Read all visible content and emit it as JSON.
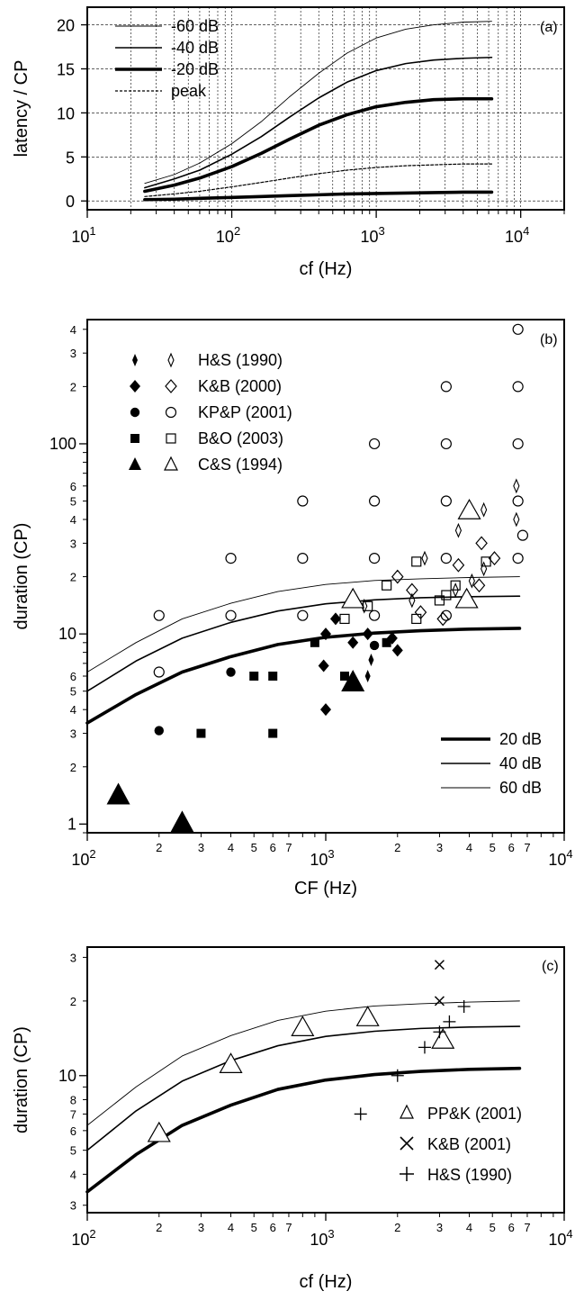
{
  "chart_data": [
    {
      "panel": "(a)",
      "type": "line",
      "xlabel": "cf (Hz)",
      "ylabel": "latency / CP",
      "xscale": "log",
      "xlim": [
        10,
        20000
      ],
      "ylim": [
        -1,
        22
      ],
      "grid": true,
      "xticks": [
        {
          "v": 10,
          "b": "10",
          "e": "1"
        },
        {
          "v": 100,
          "b": "10",
          "e": "2"
        },
        {
          "v": 1000,
          "b": "10",
          "e": "3"
        },
        {
          "v": 10000,
          "b": "10",
          "e": "4"
        }
      ],
      "yticks": [
        "0",
        "5",
        "10",
        "15",
        "20"
      ],
      "legend_position": "top-left",
      "legend": [
        {
          "label": "-60 dB",
          "style": "thin"
        },
        {
          "label": "-40 dB",
          "style": "medium"
        },
        {
          "label": "-20 dB",
          "style": "thick"
        },
        {
          "label": "peak",
          "style": "dotted"
        }
      ],
      "x": [
        25,
        40,
        60,
        100,
        160,
        250,
        400,
        630,
        1000,
        1600,
        2500,
        4000,
        6300
      ],
      "series": [
        {
          "name": "-60 dB",
          "values": [
            2.0,
            3.0,
            4.3,
            6.5,
            9.0,
            11.8,
            14.5,
            16.8,
            18.5,
            19.5,
            20.0,
            20.3,
            20.4
          ]
        },
        {
          "name": "-40 dB",
          "values": [
            1.5,
            2.5,
            3.5,
            5.3,
            7.3,
            9.5,
            11.7,
            13.5,
            14.8,
            15.6,
            16.0,
            16.2,
            16.3
          ]
        },
        {
          "name": "-20 dB",
          "values": [
            1.1,
            1.8,
            2.6,
            3.9,
            5.4,
            7.0,
            8.6,
            9.8,
            10.7,
            11.2,
            11.5,
            11.6,
            11.6
          ]
        },
        {
          "name": "peak",
          "values": [
            0.5,
            0.8,
            1.1,
            1.6,
            2.1,
            2.6,
            3.1,
            3.5,
            3.8,
            4.0,
            4.1,
            4.2,
            4.2
          ]
        },
        {
          "name": "peak-low",
          "values": [
            0.15,
            0.2,
            0.3,
            0.4,
            0.5,
            0.6,
            0.7,
            0.8,
            0.85,
            0.9,
            0.95,
            1.0,
            1.0
          ]
        }
      ],
      "tag": "(a)"
    },
    {
      "panel": "(b)",
      "type": "scatter",
      "xlabel": "CF (Hz)",
      "ylabel": "duration (CP)",
      "xscale": "log",
      "yscale": "log",
      "xlim": [
        100,
        10000
      ],
      "ylim": [
        0.9,
        450
      ],
      "xticks": [
        {
          "v": 100,
          "b": "10",
          "e": "2"
        },
        {
          "v": 1000,
          "b": "10",
          "e": "3"
        },
        {
          "v": 10000,
          "b": "10",
          "e": "4"
        }
      ],
      "xminor": [
        {
          "v": 200,
          "t": "2"
        },
        {
          "v": 300,
          "t": "3"
        },
        {
          "v": 400,
          "t": "4"
        },
        {
          "v": 500,
          "t": "5"
        },
        {
          "v": 600,
          "t": "6"
        },
        {
          "v": 700,
          "t": "7"
        },
        {
          "v": 2000,
          "t": "2"
        },
        {
          "v": 3000,
          "t": "3"
        },
        {
          "v": 4000,
          "t": "4"
        },
        {
          "v": 5000,
          "t": "5"
        },
        {
          "v": 6000,
          "t": "6"
        },
        {
          "v": 7000,
          "t": "7"
        }
      ],
      "yticks": [
        {
          "v": 1,
          "t": "1"
        },
        {
          "v": 10,
          "t": "10"
        },
        {
          "v": 100,
          "t": "100"
        }
      ],
      "yminor": [
        {
          "v": 2,
          "t": "2"
        },
        {
          "v": 3,
          "t": "3"
        },
        {
          "v": 4,
          "t": "4"
        },
        {
          "v": 5,
          "t": "5"
        },
        {
          "v": 6,
          "t": "6"
        },
        {
          "v": 20,
          "t": "2"
        },
        {
          "v": 30,
          "t": "3"
        },
        {
          "v": 40,
          "t": "4"
        },
        {
          "v": 50,
          "t": "5"
        },
        {
          "v": 60,
          "t": "6"
        },
        {
          "v": 200,
          "t": "2"
        },
        {
          "v": 300,
          "t": "3"
        },
        {
          "v": 400,
          "t": "4"
        }
      ],
      "legend_position": "top-left",
      "legend": [
        {
          "label": "H&S (1990)",
          "filled": "thin-diamond-filled",
          "open": "thin-diamond-open"
        },
        {
          "label": "K&B (2000)",
          "filled": "diamond-filled",
          "open": "diamond-open"
        },
        {
          "label": "KP&P (2001)",
          "filled": "circle-filled",
          "open": "circle-open"
        },
        {
          "label": "B&O (2003)",
          "filled": "square-filled",
          "open": "square-open"
        },
        {
          "label": "C&S (1994)",
          "filled": "triangle-filled",
          "open": "triangle-open"
        }
      ],
      "line_legend_position": "bottom-right",
      "line_legend": [
        {
          "label": "20 dB",
          "style": "thick"
        },
        {
          "label": "40 dB",
          "style": "medium"
        },
        {
          "label": "60 dB",
          "style": "thin"
        }
      ],
      "curve_x": [
        100,
        160,
        250,
        400,
        630,
        1000,
        1600,
        2500,
        4000,
        6500
      ],
      "series": [
        {
          "name": "20 dB",
          "values": [
            3.4,
            4.8,
            6.3,
            7.6,
            8.8,
            9.6,
            10.1,
            10.4,
            10.6,
            10.7
          ]
        },
        {
          "name": "40 dB",
          "values": [
            5.0,
            7.2,
            9.5,
            11.5,
            13.2,
            14.4,
            15.1,
            15.5,
            15.7,
            15.8
          ]
        },
        {
          "name": "60 dB",
          "values": [
            6.3,
            9.0,
            12.0,
            14.5,
            16.7,
            18.2,
            19.1,
            19.5,
            19.8,
            20.0
          ]
        }
      ],
      "points": [
        {
          "x": 1550,
          "y": 7.3,
          "m": "thin-diamond-filled"
        },
        {
          "x": 1500,
          "y": 6.0,
          "m": "thin-diamond-filled"
        },
        {
          "x": 1000,
          "y": 10.0,
          "m": "diamond-filled"
        },
        {
          "x": 1000,
          "y": 4.0,
          "m": "diamond-filled"
        },
        {
          "x": 980,
          "y": 6.8,
          "m": "diamond-filled"
        },
        {
          "x": 1300,
          "y": 9.0,
          "m": "diamond-filled"
        },
        {
          "x": 1500,
          "y": 10.0,
          "m": "diamond-filled"
        },
        {
          "x": 1900,
          "y": 9.5,
          "m": "diamond-filled"
        },
        {
          "x": 2000,
          "y": 8.2,
          "m": "diamond-filled"
        },
        {
          "x": 1100,
          "y": 12.0,
          "m": "diamond-filled"
        },
        {
          "x": 200,
          "y": 3.1,
          "m": "circle-filled"
        },
        {
          "x": 400,
          "y": 6.3,
          "m": "circle-filled"
        },
        {
          "x": 1600,
          "y": 8.7,
          "m": "circle-filled"
        },
        {
          "x": 300,
          "y": 3.0,
          "m": "square-filled"
        },
        {
          "x": 600,
          "y": 3.0,
          "m": "square-filled"
        },
        {
          "x": 500,
          "y": 6.0,
          "m": "square-filled"
        },
        {
          "x": 600,
          "y": 6.0,
          "m": "square-filled"
        },
        {
          "x": 900,
          "y": 9.0,
          "m": "square-filled"
        },
        {
          "x": 1200,
          "y": 6.0,
          "m": "square-filled"
        },
        {
          "x": 1800,
          "y": 9.0,
          "m": "square-filled"
        },
        {
          "x": 135,
          "y": 1.4,
          "m": "triangle-filled"
        },
        {
          "x": 250,
          "y": 1.0,
          "m": "triangle-filled"
        },
        {
          "x": 1300,
          "y": 5.5,
          "m": "triangle-filled"
        },
        {
          "x": 1450,
          "y": 14.0,
          "m": "thin-diamond-open"
        },
        {
          "x": 2300,
          "y": 15.0,
          "m": "thin-diamond-open"
        },
        {
          "x": 3500,
          "y": 17.0,
          "m": "thin-diamond-open"
        },
        {
          "x": 4100,
          "y": 19.0,
          "m": "thin-diamond-open"
        },
        {
          "x": 4600,
          "y": 22.0,
          "m": "thin-diamond-open"
        },
        {
          "x": 3600,
          "y": 35.0,
          "m": "thin-diamond-open"
        },
        {
          "x": 4600,
          "y": 45.0,
          "m": "thin-diamond-open"
        },
        {
          "x": 6300,
          "y": 60.0,
          "m": "thin-diamond-open"
        },
        {
          "x": 6300,
          "y": 40.0,
          "m": "thin-diamond-open"
        },
        {
          "x": 2600,
          "y": 25.0,
          "m": "thin-diamond-open"
        },
        {
          "x": 2000,
          "y": 20.0,
          "m": "diamond-open"
        },
        {
          "x": 2300,
          "y": 17.0,
          "m": "diamond-open"
        },
        {
          "x": 2500,
          "y": 13.0,
          "m": "diamond-open"
        },
        {
          "x": 3100,
          "y": 12.0,
          "m": "diamond-open"
        },
        {
          "x": 3600,
          "y": 23.0,
          "m": "diamond-open"
        },
        {
          "x": 4500,
          "y": 30.0,
          "m": "diamond-open"
        },
        {
          "x": 4400,
          "y": 18.0,
          "m": "diamond-open"
        },
        {
          "x": 5100,
          "y": 25.0,
          "m": "diamond-open"
        },
        {
          "x": 6700,
          "y": 33.0,
          "m": "circle-open"
        },
        {
          "x": 200,
          "y": 12.5,
          "m": "circle-open"
        },
        {
          "x": 200,
          "y": 6.3,
          "m": "circle-open"
        },
        {
          "x": 400,
          "y": 25.0,
          "m": "circle-open"
        },
        {
          "x": 400,
          "y": 12.5,
          "m": "circle-open"
        },
        {
          "x": 800,
          "y": 50.0,
          "m": "circle-open"
        },
        {
          "x": 800,
          "y": 25.0,
          "m": "circle-open"
        },
        {
          "x": 800,
          "y": 12.5,
          "m": "circle-open"
        },
        {
          "x": 1600,
          "y": 100.0,
          "m": "circle-open"
        },
        {
          "x": 1600,
          "y": 50.0,
          "m": "circle-open"
        },
        {
          "x": 1600,
          "y": 25.0,
          "m": "circle-open"
        },
        {
          "x": 1600,
          "y": 12.5,
          "m": "circle-open"
        },
        {
          "x": 3200,
          "y": 200.0,
          "m": "circle-open"
        },
        {
          "x": 3200,
          "y": 100.0,
          "m": "circle-open"
        },
        {
          "x": 3200,
          "y": 50.0,
          "m": "circle-open"
        },
        {
          "x": 3200,
          "y": 25.0,
          "m": "circle-open"
        },
        {
          "x": 3200,
          "y": 12.5,
          "m": "circle-open"
        },
        {
          "x": 6400,
          "y": 400.0,
          "m": "circle-open"
        },
        {
          "x": 6400,
          "y": 200.0,
          "m": "circle-open"
        },
        {
          "x": 6400,
          "y": 100.0,
          "m": "circle-open"
        },
        {
          "x": 6400,
          "y": 50.0,
          "m": "circle-open"
        },
        {
          "x": 6400,
          "y": 25.0,
          "m": "circle-open"
        },
        {
          "x": 1500,
          "y": 14.0,
          "m": "square-open"
        },
        {
          "x": 1200,
          "y": 12.0,
          "m": "square-open"
        },
        {
          "x": 1800,
          "y": 18.0,
          "m": "square-open"
        },
        {
          "x": 2400,
          "y": 24.0,
          "m": "square-open"
        },
        {
          "x": 2400,
          "y": 12.0,
          "m": "square-open"
        },
        {
          "x": 3000,
          "y": 15.0,
          "m": "square-open"
        },
        {
          "x": 3500,
          "y": 18.0,
          "m": "square-open"
        },
        {
          "x": 4700,
          "y": 24.0,
          "m": "square-open"
        },
        {
          "x": 3200,
          "y": 16.0,
          "m": "square-open"
        },
        {
          "x": 1300,
          "y": 15.0,
          "m": "triangle-open"
        },
        {
          "x": 3900,
          "y": 15.0,
          "m": "triangle-open"
        },
        {
          "x": 4000,
          "y": 44.0,
          "m": "triangle-open"
        }
      ],
      "tag": "(b)"
    },
    {
      "panel": "(c)",
      "type": "scatter",
      "xlabel": "cf (Hz)",
      "ylabel": "duration (CP)",
      "xscale": "log",
      "yscale": "log",
      "xlim": [
        100,
        10000
      ],
      "ylim": [
        2.8,
        33
      ],
      "xticks": [
        {
          "v": 100,
          "b": "10",
          "e": "2"
        },
        {
          "v": 1000,
          "b": "10",
          "e": "3"
        },
        {
          "v": 10000,
          "b": "10",
          "e": "4"
        }
      ],
      "xminor": [
        {
          "v": 200,
          "t": "2"
        },
        {
          "v": 300,
          "t": "3"
        },
        {
          "v": 400,
          "t": "4"
        },
        {
          "v": 500,
          "t": "5"
        },
        {
          "v": 600,
          "t": "6"
        },
        {
          "v": 700,
          "t": "7"
        },
        {
          "v": 2000,
          "t": "2"
        },
        {
          "v": 3000,
          "t": "3"
        },
        {
          "v": 4000,
          "t": "4"
        },
        {
          "v": 5000,
          "t": "5"
        },
        {
          "v": 6000,
          "t": "6"
        },
        {
          "v": 7000,
          "t": "7"
        }
      ],
      "yticks": [
        {
          "v": 10,
          "t": "10"
        }
      ],
      "yminor": [
        {
          "v": 3,
          "t": "3"
        },
        {
          "v": 4,
          "t": "4"
        },
        {
          "v": 5,
          "t": "5"
        },
        {
          "v": 6,
          "t": "6"
        },
        {
          "v": 7,
          "t": "7"
        },
        {
          "v": 8,
          "t": "8"
        },
        {
          "v": 20,
          "t": "2"
        },
        {
          "v": 30,
          "t": "3"
        }
      ],
      "legend_position": "bottom-right",
      "legend": [
        {
          "label": "PP&K (2001)",
          "marker": "triangle-open"
        },
        {
          "label": "K&B (2001)",
          "marker": "cross-x"
        },
        {
          "label": "H&S (1990)",
          "marker": "plus"
        }
      ],
      "curve_x": [
        100,
        160,
        250,
        400,
        630,
        1000,
        1600,
        2500,
        4000,
        6500
      ],
      "series": [
        {
          "name": "lower",
          "values": [
            3.4,
            4.8,
            6.3,
            7.6,
            8.8,
            9.6,
            10.1,
            10.4,
            10.6,
            10.7
          ]
        },
        {
          "name": "middle",
          "values": [
            5.0,
            7.2,
            9.5,
            11.5,
            13.2,
            14.4,
            15.1,
            15.5,
            15.7,
            15.8
          ]
        },
        {
          "name": "upper",
          "values": [
            6.3,
            9.0,
            12.0,
            14.5,
            16.7,
            18.2,
            19.1,
            19.5,
            19.8,
            20.0
          ]
        }
      ],
      "points": [
        {
          "x": 200,
          "y": 5.8,
          "m": "triangle-open"
        },
        {
          "x": 400,
          "y": 11.0,
          "m": "triangle-open"
        },
        {
          "x": 800,
          "y": 15.5,
          "m": "triangle-open"
        },
        {
          "x": 1500,
          "y": 17.0,
          "m": "triangle-open"
        },
        {
          "x": 3100,
          "y": 13.8,
          "m": "triangle-open"
        },
        {
          "x": 3000,
          "y": 28.0,
          "m": "cross-x"
        },
        {
          "x": 3000,
          "y": 20.0,
          "m": "cross-x"
        },
        {
          "x": 1400,
          "y": 7.0,
          "m": "plus"
        },
        {
          "x": 2000,
          "y": 10.0,
          "m": "plus"
        },
        {
          "x": 2600,
          "y": 13.0,
          "m": "plus"
        },
        {
          "x": 3000,
          "y": 15.0,
          "m": "plus"
        },
        {
          "x": 3300,
          "y": 16.5,
          "m": "plus"
        },
        {
          "x": 3800,
          "y": 19.0,
          "m": "plus"
        }
      ],
      "tag": "(c)"
    }
  ]
}
